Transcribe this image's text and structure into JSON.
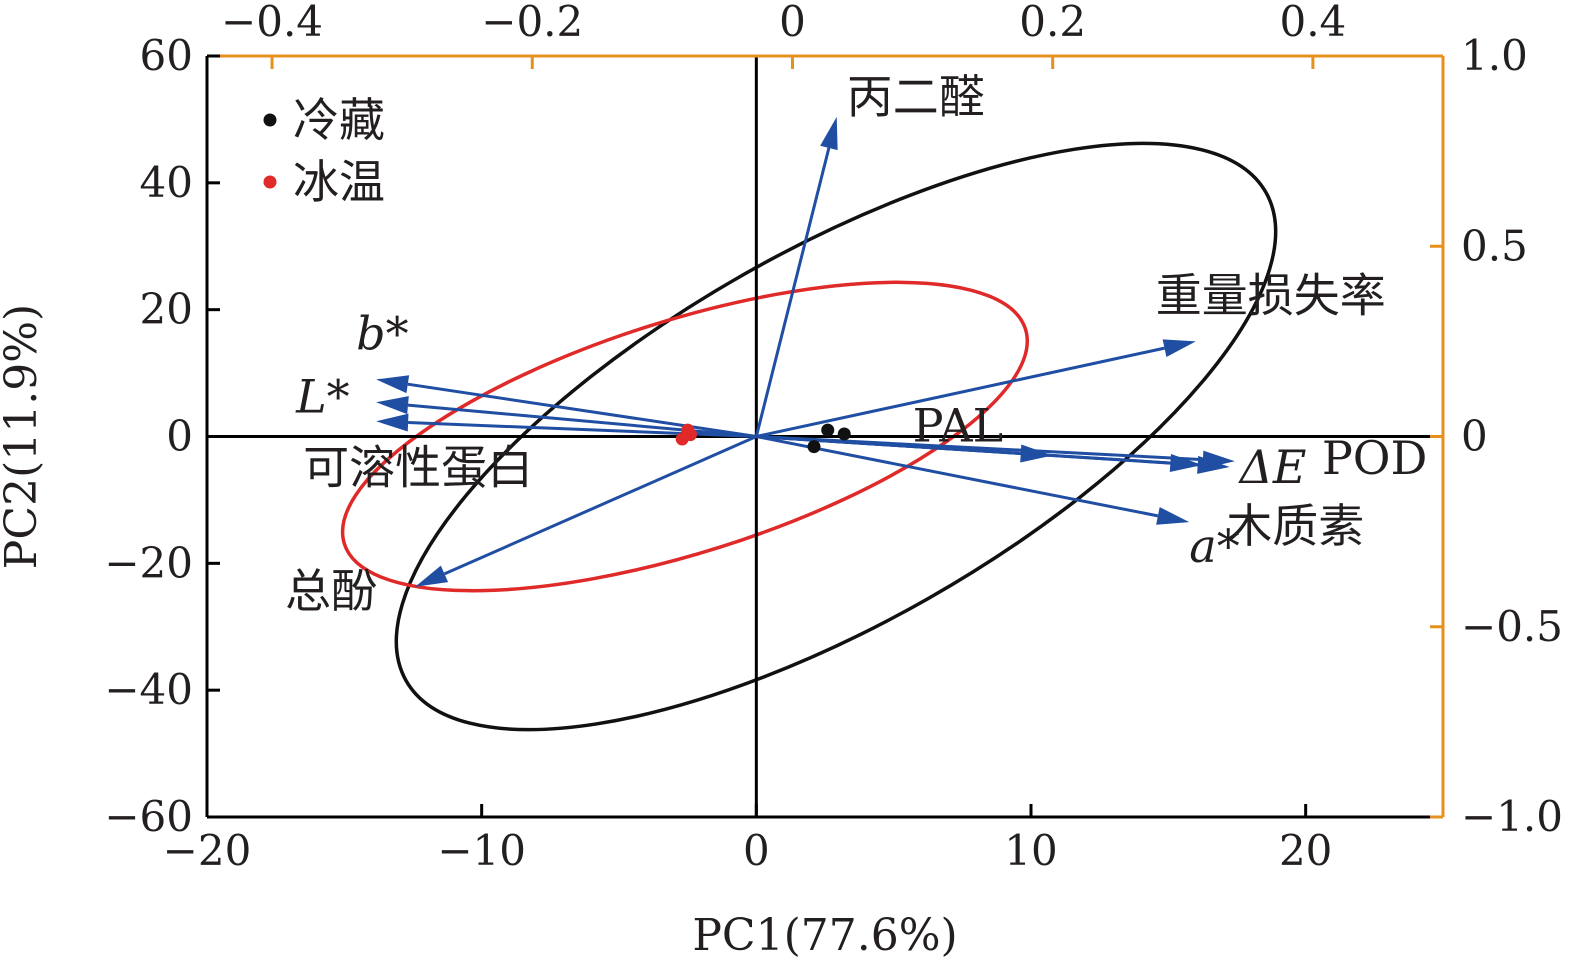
{
  "chart_data": {
    "type": "scatter",
    "subtype": "pca-biplot",
    "xlabel": "PC1(77.6%)",
    "ylabel": "PC2(11.9%)",
    "xlim": [
      -20,
      25
    ],
    "ylim": [
      -60,
      60
    ],
    "x_ticks": [
      "−20",
      "−10",
      "0",
      "10",
      "20"
    ],
    "x_tick_values": [
      -20,
      -10,
      0,
      10,
      20
    ],
    "y_ticks": [
      "−60",
      "−40",
      "−20",
      "0",
      "20",
      "40",
      "60"
    ],
    "y_tick_values": [
      -60,
      -40,
      -20,
      0,
      20,
      40,
      60
    ],
    "top_axis": {
      "lim": [
        -0.45,
        0.5
      ],
      "ticks": [
        "−0.4",
        "−0.2",
        "0",
        "0.2",
        "0.4"
      ],
      "tick_values": [
        -0.4,
        -0.2,
        0,
        0.2,
        0.4
      ],
      "color": "#e6911e"
    },
    "right_axis": {
      "lim": [
        -1.0,
        1.0
      ],
      "ticks": [
        "1.0",
        "0.5",
        "0",
        "−0.5",
        "−1.0"
      ],
      "tick_values": [
        1.0,
        0.5,
        0,
        -0.5,
        -1.0
      ],
      "color": "#e6911e"
    },
    "legend": {
      "placement": "top-left",
      "entries": [
        {
          "label": "冷藏",
          "color": "#000000"
        },
        {
          "label": "冰温",
          "color": "#e02020"
        }
      ]
    },
    "series": [
      {
        "name": "冷藏",
        "color": "#000000",
        "points": [
          [
            2.6,
            1.0
          ],
          [
            3.2,
            0.4
          ],
          [
            2.1,
            -1.6
          ]
        ],
        "ellipse": {
          "center": [
            2.9,
            0.0
          ],
          "rx": 18.0,
          "ry": 29.4,
          "angle_deg": -29.6
        }
      },
      {
        "name": "冰温",
        "color": "#e02020",
        "points": [
          [
            -2.4,
            0.3
          ],
          [
            -2.7,
            -0.4
          ],
          [
            -2.5,
            1.0
          ]
        ],
        "ellipse": {
          "center": [
            -2.6,
            0.0
          ],
          "rx": 13.0,
          "ry": 18.3,
          "angle_deg": -17.5
        }
      }
    ],
    "loadings": [
      {
        "name": "丙二醛",
        "italic": false,
        "x": 0.034,
        "y": 0.84
      },
      {
        "name": "重量损失率",
        "italic": false,
        "x": 0.31,
        "y": 0.25
      },
      {
        "name": "PAL",
        "italic": false,
        "x": 0.2,
        "y": -0.05
      },
      {
        "name": "ΔE",
        "italic": true,
        "x": 0.336,
        "y": -0.08
      },
      {
        "name": "POD",
        "italic": false,
        "x": 0.34,
        "y": -0.065
      },
      {
        "name": "木质素",
        "italic": false,
        "x": 0.315,
        "y": -0.075
      },
      {
        "name": "a*",
        "italic": true,
        "x": 0.305,
        "y": -0.225
      },
      {
        "name": "b*",
        "italic": true,
        "x": -0.32,
        "y": 0.15
      },
      {
        "name": "L*",
        "italic": true,
        "x": -0.32,
        "y": 0.09
      },
      {
        "name": "可溶性蛋白",
        "italic": false,
        "x": -0.32,
        "y": 0.04
      },
      {
        "name": "总酚",
        "italic": false,
        "x": -0.29,
        "y": -0.395
      }
    ],
    "arrow_color": "#1f4ea3",
    "grid": false
  }
}
